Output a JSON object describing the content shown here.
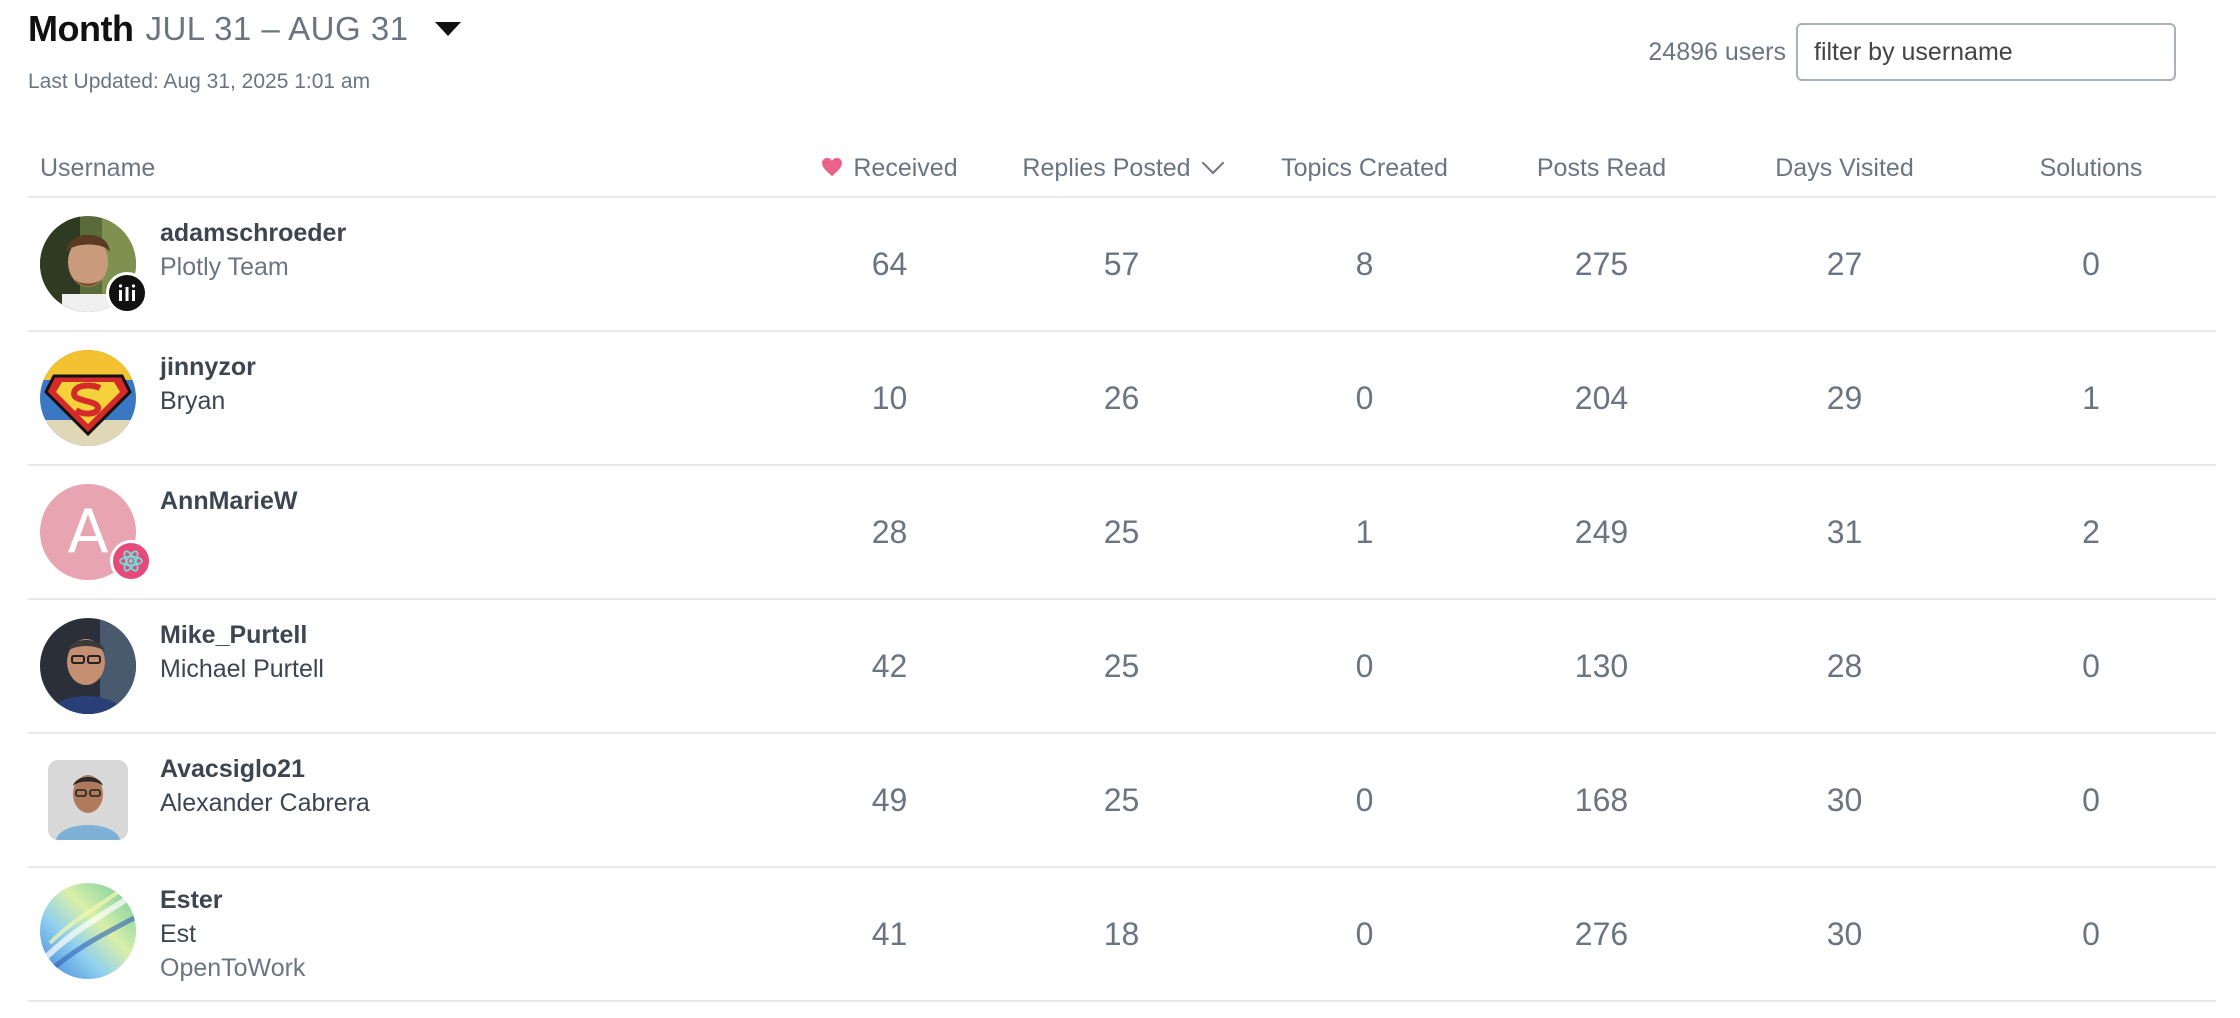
{
  "header": {
    "period_label": "Month",
    "period_range": "JUL 31 – AUG 31",
    "last_updated": "Last Updated: Aug 31, 2025 1:01 am"
  },
  "users_count": "24896 users",
  "filter": {
    "placeholder": "filter by username",
    "value": ""
  },
  "columns": {
    "username": "Username",
    "received": "Received",
    "replies_posted": "Replies Posted",
    "topics_created": "Topics Created",
    "posts_read": "Posts Read",
    "days_visited": "Days Visited",
    "solutions": "Solutions"
  },
  "sorted_column": "replies_posted",
  "colors": {
    "heart": "#e8628a",
    "flair_pink": "#e8497b",
    "letter_avatar": "#e9a4b1"
  },
  "rows": [
    {
      "username": "adamschroeder",
      "full_name": "",
      "title": "Plotly Team",
      "avatar": "photo-icon",
      "flair": "plotly-icon",
      "received": "64",
      "replies": "57",
      "topics": "8",
      "posts_read": "275",
      "days": "27",
      "solutions": "0"
    },
    {
      "username": "jinnyzor",
      "full_name": "Bryan",
      "title": "",
      "avatar": "superman-icon",
      "flair": "",
      "received": "10",
      "replies": "26",
      "topics": "0",
      "posts_read": "204",
      "days": "29",
      "solutions": "1"
    },
    {
      "username": "AnnMarieW",
      "full_name": "",
      "title": "",
      "avatar_letter": "A",
      "flair": "atom-icon",
      "received": "28",
      "replies": "25",
      "topics": "1",
      "posts_read": "249",
      "days": "31",
      "solutions": "2"
    },
    {
      "username": "Mike_Purtell",
      "full_name": "Michael Purtell",
      "title": "",
      "avatar": "photo-icon",
      "flair": "",
      "received": "42",
      "replies": "25",
      "topics": "0",
      "posts_read": "130",
      "days": "28",
      "solutions": "0"
    },
    {
      "username": "Avacsiglo21",
      "full_name": "Alexander Cabrera",
      "title": "",
      "avatar": "photo-icon",
      "flair": "",
      "received": "49",
      "replies": "25",
      "topics": "0",
      "posts_read": "168",
      "days": "30",
      "solutions": "0"
    },
    {
      "username": "Ester",
      "full_name": "Est",
      "title": "OpenToWork",
      "avatar": "abstract-icon",
      "flair": "",
      "received": "41",
      "replies": "18",
      "topics": "0",
      "posts_read": "276",
      "days": "30",
      "solutions": "0"
    }
  ]
}
